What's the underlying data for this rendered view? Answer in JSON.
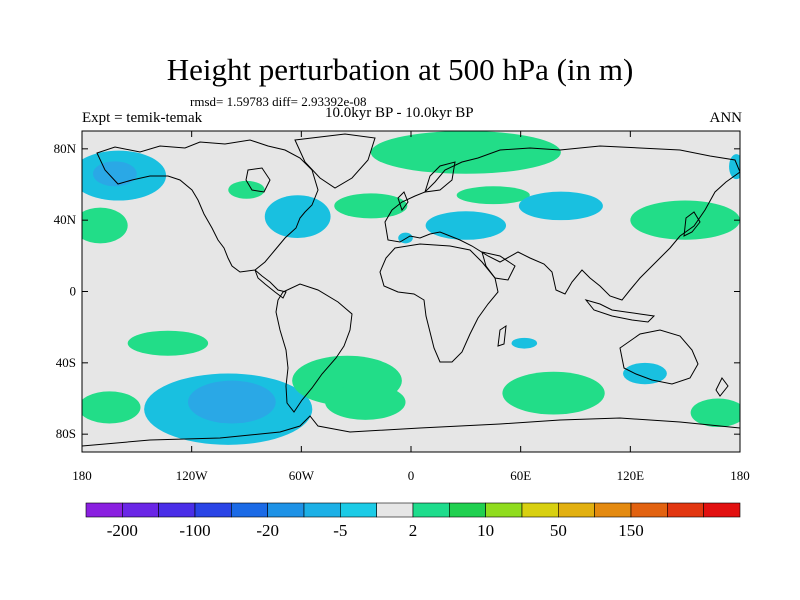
{
  "title": "Height perturbation at 500 hPa (in m)",
  "stats": "rmsd= 1.59783 diff= 2.93392e-08",
  "left_label": "Expt = temik-temak",
  "center_label": "10.0kyr BP - 10.0kyr BP",
  "right_label": "ANN",
  "map": {
    "lon_range": [
      -180,
      180
    ],
    "lat_range": [
      -90,
      90
    ],
    "background_color": "#e6e6e6",
    "coastline_color": "#000000",
    "y_ticks": [
      {
        "lat": 80,
        "label": "80N"
      },
      {
        "lat": 40,
        "label": "40N"
      },
      {
        "lat": 0,
        "label": "0"
      },
      {
        "lat": -40,
        "label": "40S"
      },
      {
        "lat": -80,
        "label": "80S"
      }
    ],
    "x_ticks": [
      {
        "lon": -180,
        "label": "180"
      },
      {
        "lon": -120,
        "label": "120W"
      },
      {
        "lon": -60,
        "label": "60W"
      },
      {
        "lon": 0,
        "label": "0"
      },
      {
        "lon": 60,
        "label": "60E"
      },
      {
        "lon": 120,
        "label": "120E"
      },
      {
        "lon": 180,
        "label": "180"
      }
    ]
  },
  "contours": [
    {
      "lon": 30,
      "lat": 78,
      "rlon": 52,
      "rlat": 12,
      "color": "#22dd88"
    },
    {
      "lon": 45,
      "lat": 54,
      "rlon": 20,
      "rlat": 5,
      "color": "#22dd88"
    },
    {
      "lon": -160,
      "lat": 65,
      "rlon": 26,
      "rlat": 14,
      "color": "#19c0e0"
    },
    {
      "lon": -162,
      "lat": 66,
      "rlon": 12,
      "rlat": 7,
      "color": "#2aa8e6"
    },
    {
      "lon": -90,
      "lat": 57,
      "rlon": 10,
      "rlat": 5,
      "color": "#22dd88"
    },
    {
      "lon": -62,
      "lat": 42,
      "rlon": 18,
      "rlat": 12,
      "color": "#19c0e0"
    },
    {
      "lon": -22,
      "lat": 48,
      "rlon": 20,
      "rlat": 7,
      "color": "#22dd88"
    },
    {
      "lon": 30,
      "lat": 37,
      "rlon": 22,
      "rlat": 8,
      "color": "#19c0e0"
    },
    {
      "lon": 82,
      "lat": 48,
      "rlon": 23,
      "rlat": 8,
      "color": "#19c0e0"
    },
    {
      "lon": -3,
      "lat": 30,
      "rlon": 4,
      "rlat": 3,
      "color": "#19c0e0"
    },
    {
      "lon": -170,
      "lat": 37,
      "rlon": 15,
      "rlat": 10,
      "color": "#22dd88"
    },
    {
      "lon": 150,
      "lat": 40,
      "rlon": 30,
      "rlat": 11,
      "color": "#22dd88"
    },
    {
      "lon": 178,
      "lat": 70,
      "rlon": 4,
      "rlat": 7,
      "color": "#19c0e0"
    },
    {
      "lon": -133,
      "lat": -29,
      "rlon": 22,
      "rlat": 7,
      "color": "#22dd88"
    },
    {
      "lon": 62,
      "lat": -29,
      "rlon": 7,
      "rlat": 3,
      "color": "#19c0e0"
    },
    {
      "lon": 128,
      "lat": -46,
      "rlon": 12,
      "rlat": 6,
      "color": "#19c0e0"
    },
    {
      "lon": -100,
      "lat": -66,
      "rlon": 46,
      "rlat": 20,
      "color": "#19c0e0"
    },
    {
      "lon": -98,
      "lat": -62,
      "rlon": 24,
      "rlat": 12,
      "color": "#2aa8e6"
    },
    {
      "lon": -35,
      "lat": -50,
      "rlon": 30,
      "rlat": 14,
      "color": "#22dd88"
    },
    {
      "lon": -25,
      "lat": -62,
      "rlon": 22,
      "rlat": 10,
      "color": "#22dd88"
    },
    {
      "lon": -165,
      "lat": -65,
      "rlon": 17,
      "rlat": 9,
      "color": "#22dd88"
    },
    {
      "lon": 78,
      "lat": -57,
      "rlon": 28,
      "rlat": 12,
      "color": "#22dd88"
    },
    {
      "lon": 168,
      "lat": -68,
      "rlon": 15,
      "rlat": 8,
      "color": "#22dd88"
    }
  ],
  "colorbar": {
    "colors": [
      "#8a1fe0",
      "#6a26e6",
      "#4a2ee8",
      "#2a44e6",
      "#1b6ae6",
      "#1e92e6",
      "#1cb0e6",
      "#1ccbe6",
      "#e6e6e6",
      "#1edc8c",
      "#20d050",
      "#90dc1e",
      "#d8d010",
      "#e2b010",
      "#e48a10",
      "#e26210",
      "#e23610",
      "#e21010"
    ],
    "labels": [
      {
        "boundary": 1,
        "text": "-200"
      },
      {
        "boundary": 3,
        "text": "-100"
      },
      {
        "boundary": 5,
        "text": "-20"
      },
      {
        "boundary": 7,
        "text": "-5"
      },
      {
        "boundary": 9,
        "text": "2"
      },
      {
        "boundary": 11,
        "text": "10"
      },
      {
        "boundary": 13,
        "text": "50"
      },
      {
        "boundary": 15,
        "text": "150"
      }
    ]
  }
}
